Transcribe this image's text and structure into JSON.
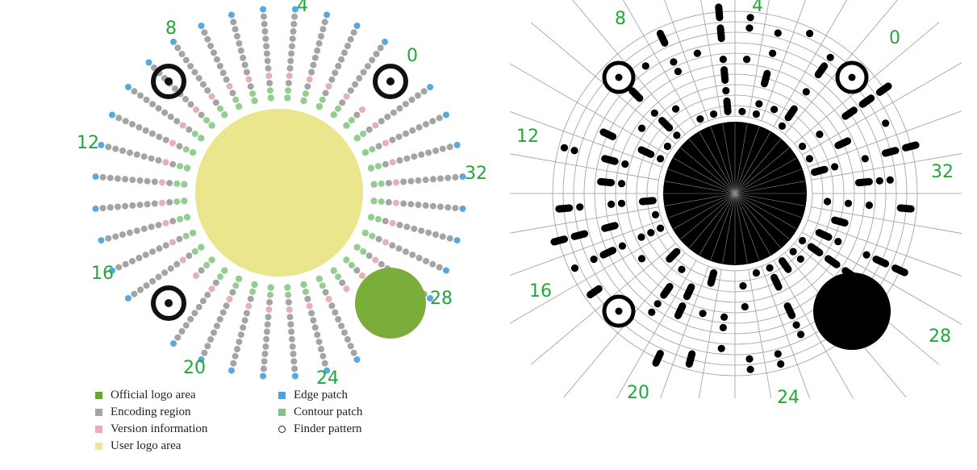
{
  "diagrams": {
    "left": {
      "sector_labels": [
        "0",
        "4",
        "8",
        "12",
        "16",
        "20",
        "24",
        "28",
        "32"
      ]
    },
    "right": {
      "sector_labels": [
        "0",
        "4",
        "8",
        "12",
        "16",
        "20",
        "24",
        "28",
        "32"
      ]
    }
  },
  "legend": {
    "items": [
      {
        "label": "Official logo area",
        "color": "#6aa637",
        "shape": "square"
      },
      {
        "label": "Encoding region",
        "color": "#a6a6a6",
        "shape": "square"
      },
      {
        "label": "Version information",
        "color": "#e7b0b6",
        "shape": "square"
      },
      {
        "label": "User logo area",
        "color": "#ece89a",
        "shape": "square"
      },
      {
        "label": "Edge patch",
        "color": "#4aa3df",
        "shape": "square"
      },
      {
        "label": "Contour patch",
        "color": "#7fc47f",
        "shape": "square"
      },
      {
        "label": "Finder pattern",
        "color": "#222222",
        "shape": "ring"
      }
    ]
  },
  "colors": {
    "official_logo": "#7aad3a",
    "encoding": "#a4a4a4",
    "version": "#e7b0b6",
    "user_logo": "#ebe58e",
    "edge": "#58a9e0",
    "contour": "#94cd90",
    "handwriting": "#22a83a"
  }
}
